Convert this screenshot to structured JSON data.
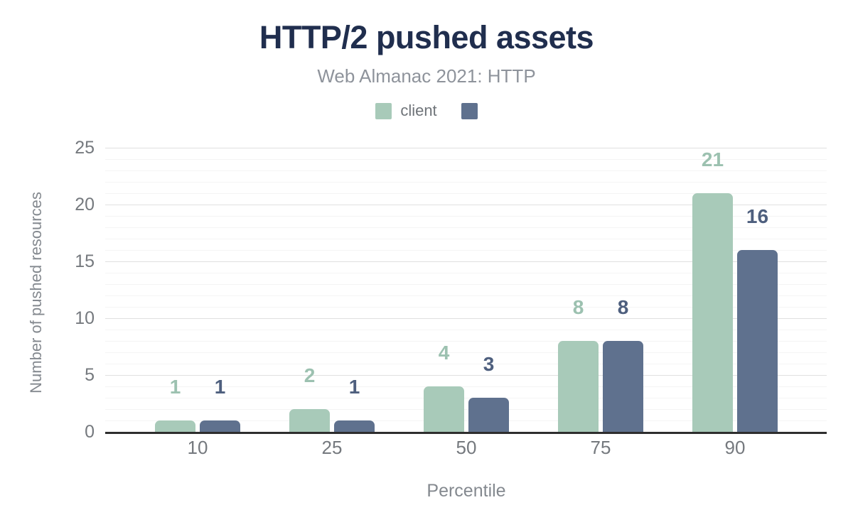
{
  "chart_data": {
    "type": "bar",
    "title": "HTTP/2 pushed assets",
    "subtitle": "Web Almanac 2021: HTTP",
    "categories": [
      "10",
      "25",
      "50",
      "75",
      "90"
    ],
    "series": [
      {
        "name": "client",
        "color": "#a8cab9",
        "label_color": "#9cc1b0",
        "values": [
          1,
          2,
          4,
          8,
          21
        ]
      },
      {
        "name": "",
        "color": "#5f718e",
        "label_color": "#4e5f7e",
        "values": [
          1,
          1,
          3,
          8,
          16
        ]
      }
    ],
    "xlabel": "Percentile",
    "ylabel": "Number of pushed resources",
    "ylim": [
      0,
      25
    ],
    "yticks": [
      0,
      5,
      10,
      15,
      20,
      25
    ],
    "minor_grid_step": 1,
    "grid": true,
    "legend_position": "top"
  },
  "colors": {
    "title": "#202e4e",
    "subtitle": "#8e939b",
    "tick_label": "#75797e",
    "axis_title": "#84898f",
    "legend_label": "#6f7479",
    "major_grid": "#e0e0e0",
    "minor_grid": "#f4f4f4",
    "axis_line": "#2e2e2e",
    "background": "#ffffff"
  }
}
